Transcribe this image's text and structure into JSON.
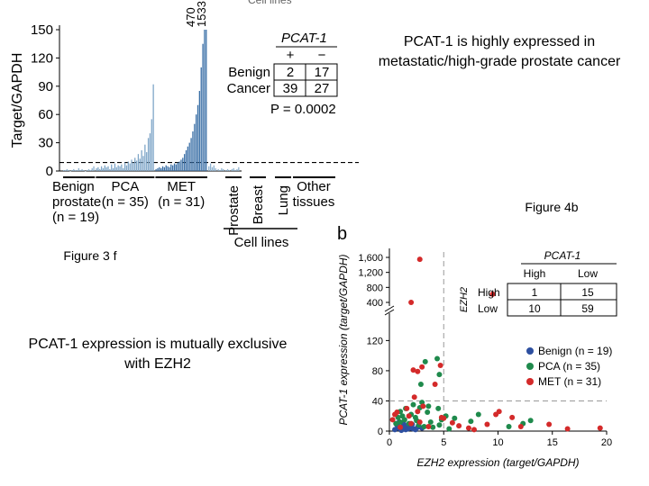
{
  "captions": {
    "top_right": "PCAT-1 is highly expressed in metastatic/high-grade prostate cancer",
    "fig4b": "Figure 4b",
    "fig3f": "Figure 3 f",
    "bottom_left": "PCAT-1 expression is mutually exclusive with EZH2"
  },
  "chart_data": [
    {
      "type": "bar",
      "panel": "Figure 3f",
      "ylabel": "Target/GAPDH",
      "ylim": [
        0,
        150
      ],
      "yticks": [
        0,
        30,
        60,
        90,
        120,
        150
      ],
      "threshold": 9,
      "overflow_labels": [
        "470",
        "1533"
      ],
      "top_cut_text": "Cell lines",
      "groups": [
        {
          "label_lines": [
            "Benign",
            "prostate",
            "(n = 19)"
          ],
          "values": [
            1,
            1,
            2,
            1,
            0,
            1,
            2,
            1,
            1,
            3,
            1,
            2,
            1,
            0,
            1,
            2,
            1,
            3,
            5
          ]
        },
        {
          "label_lines": [
            "PCA",
            "(n = 35)"
          ],
          "values": [
            3,
            4,
            2,
            5,
            3,
            6,
            4,
            5,
            2,
            7,
            3,
            8,
            4,
            6,
            5,
            7,
            3,
            9,
            6,
            10,
            8,
            12,
            9,
            14,
            11,
            18,
            13,
            22,
            16,
            28,
            20,
            35,
            40,
            55,
            92
          ]
        },
        {
          "label_lines": [
            "MET",
            "(n = 31)"
          ],
          "values": [
            2,
            3,
            4,
            3,
            5,
            4,
            6,
            5,
            4,
            7,
            6,
            8,
            7,
            9,
            10,
            12,
            14,
            18,
            22,
            26,
            30,
            35,
            42,
            50,
            60,
            70,
            85,
            110,
            135,
            150,
            150
          ]
        },
        {
          "label_lines": [
            "Prostate"
          ],
          "values": [
            5,
            8,
            4,
            6,
            3
          ]
        },
        {
          "label_lines": [
            "Breast"
          ],
          "values": [
            2,
            1,
            3,
            2
          ]
        },
        {
          "label_lines": [
            "Lung"
          ],
          "values": [
            1,
            2,
            1
          ]
        },
        {
          "label_lines": [
            "Other",
            "tissues"
          ],
          "values": [
            2,
            3,
            1,
            2,
            4
          ]
        }
      ],
      "group_caption": "Cell lines",
      "inset_table": {
        "title": "PCAT-1",
        "col_labels": [
          "+",
          "−"
        ],
        "rows": [
          {
            "label": "Benign",
            "values": [
              "2",
              "17"
            ]
          },
          {
            "label": "Cancer",
            "values": [
              "39",
              "27"
            ]
          }
        ],
        "pvalue": "P = 0.0002"
      }
    },
    {
      "type": "scatter",
      "panel_letter": "b",
      "xlabel": "EZH2 expression (target/GAPDH)",
      "ylabel": "PCAT-1 expression (target/GAPDH)",
      "xlim": [
        0,
        20
      ],
      "xticks": [
        "0",
        "5",
        "10",
        "15",
        "20"
      ],
      "yticks_lower": [
        "0",
        "40",
        "80",
        "120"
      ],
      "yticks_upper": [
        "400",
        "800",
        "1,200",
        "1,600"
      ],
      "x_threshold": 5,
      "y_threshold": 40,
      "series": [
        {
          "name": "Benign (n = 19)",
          "color": "#2d4fa0",
          "points": [
            [
              0.5,
              2
            ],
            [
              0.8,
              4
            ],
            [
              1.0,
              3
            ],
            [
              1.2,
              5
            ],
            [
              1.5,
              2
            ],
            [
              1.8,
              6
            ],
            [
              2.0,
              4
            ],
            [
              2.2,
              3
            ],
            [
              0.7,
              8
            ],
            [
              1.3,
              10
            ],
            [
              2.6,
              5
            ],
            [
              1.1,
              1
            ],
            [
              1.6,
              7
            ],
            [
              2.4,
              2
            ],
            [
              3.0,
              4
            ],
            [
              0.9,
              12
            ],
            [
              1.7,
              3
            ],
            [
              2.1,
              9
            ],
            [
              1.4,
              6
            ]
          ]
        },
        {
          "name": "PCA (n = 35)",
          "color": "#1f8a4c",
          "points": [
            [
              0.8,
              18
            ],
            [
              1.0,
              26
            ],
            [
              1.5,
              30
            ],
            [
              2.2,
              35
            ],
            [
              2.8,
              31
            ],
            [
              3.5,
              25
            ],
            [
              1.2,
              20
            ],
            [
              2.0,
              22
            ],
            [
              3.0,
              38
            ],
            [
              3.6,
              33
            ],
            [
              4.5,
              30
            ],
            [
              4.8,
              15
            ],
            [
              1.0,
              12
            ],
            [
              1.8,
              10
            ],
            [
              2.5,
              14
            ],
            [
              3.2,
              6
            ],
            [
              4.0,
              5
            ],
            [
              4.6,
              8
            ],
            [
              5.2,
              20
            ],
            [
              6.0,
              17
            ],
            [
              7.5,
              13
            ],
            [
              8.2,
              22
            ],
            [
              11.0,
              6
            ],
            [
              12.3,
              10
            ],
            [
              13.0,
              14
            ],
            [
              2.9,
              62
            ],
            [
              3.3,
              92
            ],
            [
              4.6,
              75
            ],
            [
              4.4,
              96
            ],
            [
              2.4,
              18
            ],
            [
              0.6,
              10
            ],
            [
              1.4,
              15
            ],
            [
              3.8,
              12
            ],
            [
              2.7,
              8
            ],
            [
              5.5,
              3
            ]
          ]
        },
        {
          "name": "MET (n = 31)",
          "color": "#d42a2a",
          "points": [
            [
              0.3,
              15
            ],
            [
              0.7,
              25
            ],
            [
              1.6,
              30
            ],
            [
              2.3,
              45
            ],
            [
              2.6,
              26
            ],
            [
              3.1,
              33
            ],
            [
              1.8,
              20
            ],
            [
              2.6,
              79
            ],
            [
              4.7,
              87
            ],
            [
              3.0,
              85
            ],
            [
              2.2,
              81
            ],
            [
              4.2,
              62
            ],
            [
              3.6,
              6
            ],
            [
              1.0,
              5
            ],
            [
              2.0,
              10
            ],
            [
              2.8,
              12
            ],
            [
              5.0,
              17
            ],
            [
              5.8,
              11
            ],
            [
              6.4,
              7
            ],
            [
              7.3,
              4
            ],
            [
              9.8,
              22
            ],
            [
              10.1,
              26
            ],
            [
              11.3,
              18
            ],
            [
              12.1,
              6
            ],
            [
              14.7,
              9
            ],
            [
              16.4,
              3
            ],
            [
              19.4,
              4
            ],
            [
              7.8,
              2
            ],
            [
              4.8,
              18
            ],
            [
              0.5,
              22
            ],
            [
              9.0,
              9
            ]
          ]
        },
        {
          "name": "MET (n = 31)",
          "color": "#d42a2a",
          "upper_points": [
            [
              2.8,
              1550
            ],
            [
              2.0,
              400
            ],
            [
              9.5,
              620
            ]
          ]
        }
      ],
      "legend": [
        "Benign (n = 19)",
        "PCA (n = 35)",
        "MET (n = 31)"
      ],
      "inset_table": {
        "title": "PCAT-1",
        "col_labels": [
          "High",
          "Low"
        ],
        "row_header": "EZH2",
        "rows": [
          {
            "label": "High",
            "values": [
              "1",
              "15"
            ]
          },
          {
            "label": "Low",
            "values": [
              "10",
              "59"
            ]
          }
        ]
      }
    }
  ]
}
